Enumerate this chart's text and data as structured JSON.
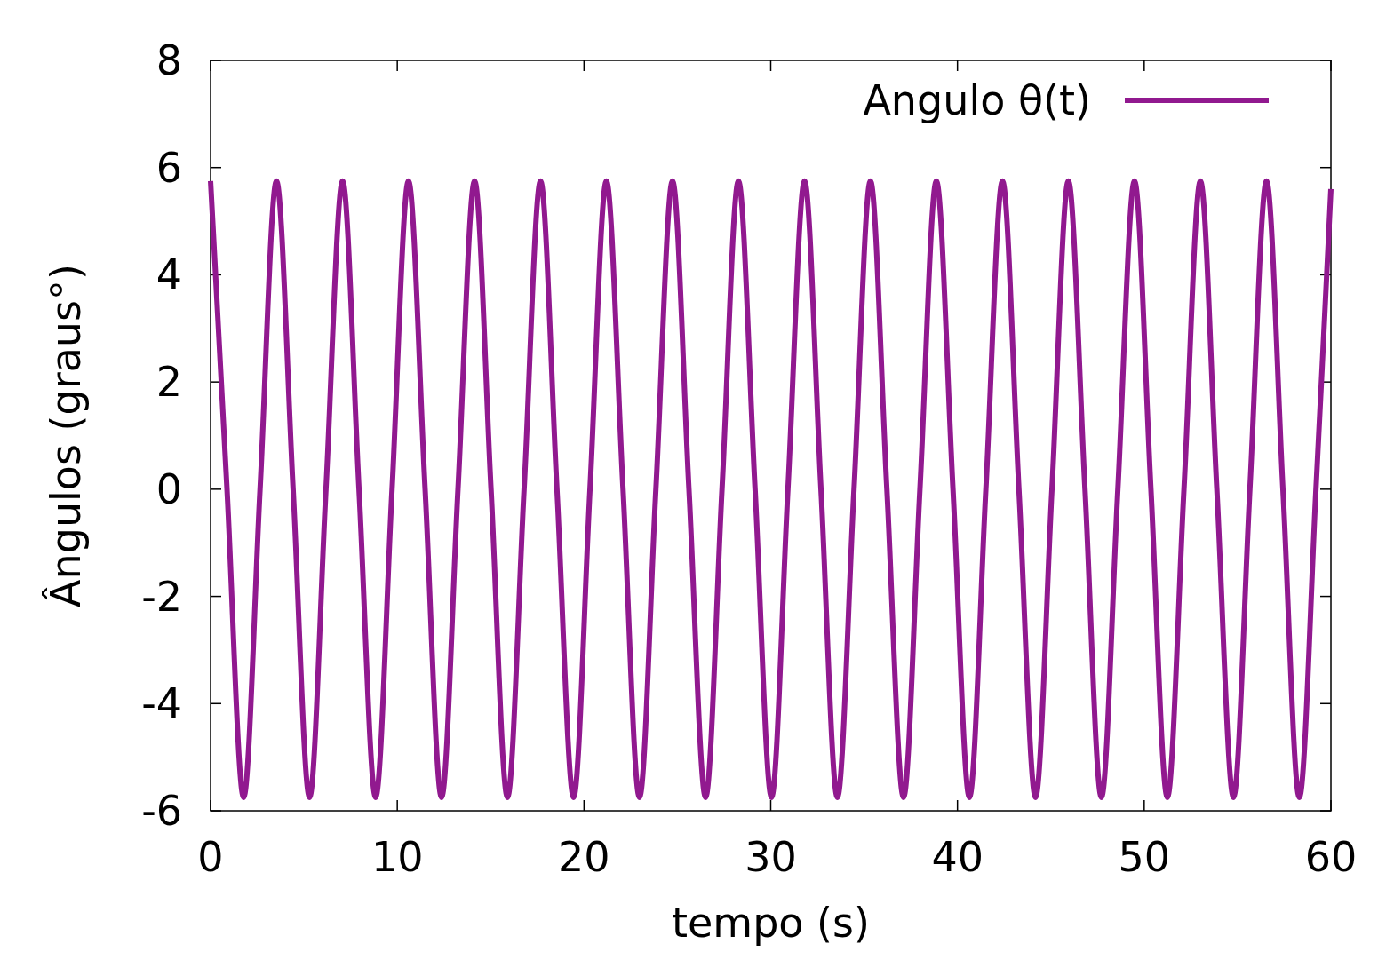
{
  "chart_data": {
    "type": "line",
    "xlabel": "tempo (s)",
    "ylabel": "Ângulos (graus°)",
    "xlim": [
      0,
      60
    ],
    "ylim": [
      -6,
      8
    ],
    "xticks": [
      0,
      10,
      20,
      30,
      40,
      50,
      60
    ],
    "yticks": [
      -6,
      -4,
      -2,
      0,
      2,
      4,
      6,
      8
    ],
    "grid": false,
    "legend": "top right",
    "line_style": "solid",
    "marker": "none",
    "x": [
      0,
      0.88,
      1.77,
      2.65,
      3.53,
      4.42,
      5.3,
      6.18,
      7.07,
      7.95,
      8.84,
      9.72,
      10.6,
      11.49,
      12.37,
      13.25,
      14.14,
      15.02,
      15.9,
      16.79,
      17.67,
      18.55,
      19.44,
      20.32,
      21.2,
      22.09,
      22.97,
      23.85,
      24.74,
      25.62,
      26.51,
      27.39,
      28.27,
      29.16,
      30.04,
      30.92,
      31.81,
      32.69,
      33.57,
      34.46,
      35.34,
      36.22,
      37.11,
      37.99,
      38.87,
      39.76,
      40.64,
      41.52,
      42.41,
      43.29,
      44.18,
      45.06,
      45.94,
      46.83,
      47.71,
      48.59,
      49.48,
      50.36,
      51.24,
      52.13,
      53.01,
      53.89,
      54.78,
      55.66,
      56.55,
      57.43,
      58.31,
      59.2,
      60
    ],
    "series": [
      {
        "name": "Angulo θ(t)",
        "color": "#91198f",
        "values": [
          5.75,
          0,
          -5.75,
          0,
          5.75,
          0,
          -5.75,
          0,
          5.75,
          0,
          -5.75,
          0,
          5.75,
          0,
          -5.75,
          0,
          5.75,
          0,
          -5.75,
          0,
          5.75,
          0,
          -5.75,
          0,
          5.75,
          0,
          -5.75,
          0,
          5.75,
          0,
          -5.75,
          0,
          5.75,
          0,
          -5.75,
          0,
          5.75,
          0,
          -5.75,
          0,
          5.75,
          0,
          -5.75,
          0,
          5.75,
          0,
          -5.75,
          0,
          5.75,
          0,
          -5.75,
          0,
          5.75,
          0,
          -5.75,
          0,
          5.75,
          0,
          -5.75,
          0,
          5.75,
          0,
          -5.75,
          0,
          5.75,
          0,
          -5.75,
          0,
          5.6
        ]
      }
    ]
  }
}
